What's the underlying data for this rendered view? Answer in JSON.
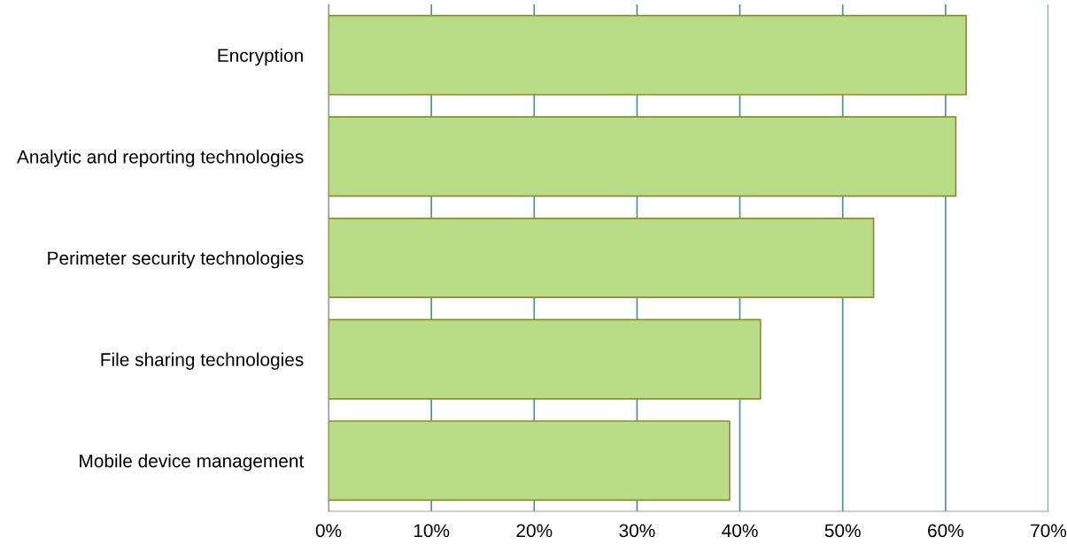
{
  "chart_data": {
    "type": "bar",
    "orientation": "horizontal",
    "categories": [
      "Encryption",
      "Analytic and reporting technologies",
      "Perimeter security technologies",
      "File sharing technologies",
      "Mobile device management"
    ],
    "values": [
      62,
      61,
      53,
      42,
      39
    ],
    "color": "#b9dc86",
    "xlim": [
      0,
      70
    ],
    "xticks": [
      {
        "value": 0,
        "label": "0%"
      },
      {
        "value": 10,
        "label": "10%"
      },
      {
        "value": 20,
        "label": "20%"
      },
      {
        "value": 30,
        "label": "30%"
      },
      {
        "value": 40,
        "label": "40%"
      },
      {
        "value": 50,
        "label": "50%"
      },
      {
        "value": 60,
        "label": "60%"
      },
      {
        "value": 70,
        "label": "70%"
      }
    ],
    "grid": "x"
  }
}
